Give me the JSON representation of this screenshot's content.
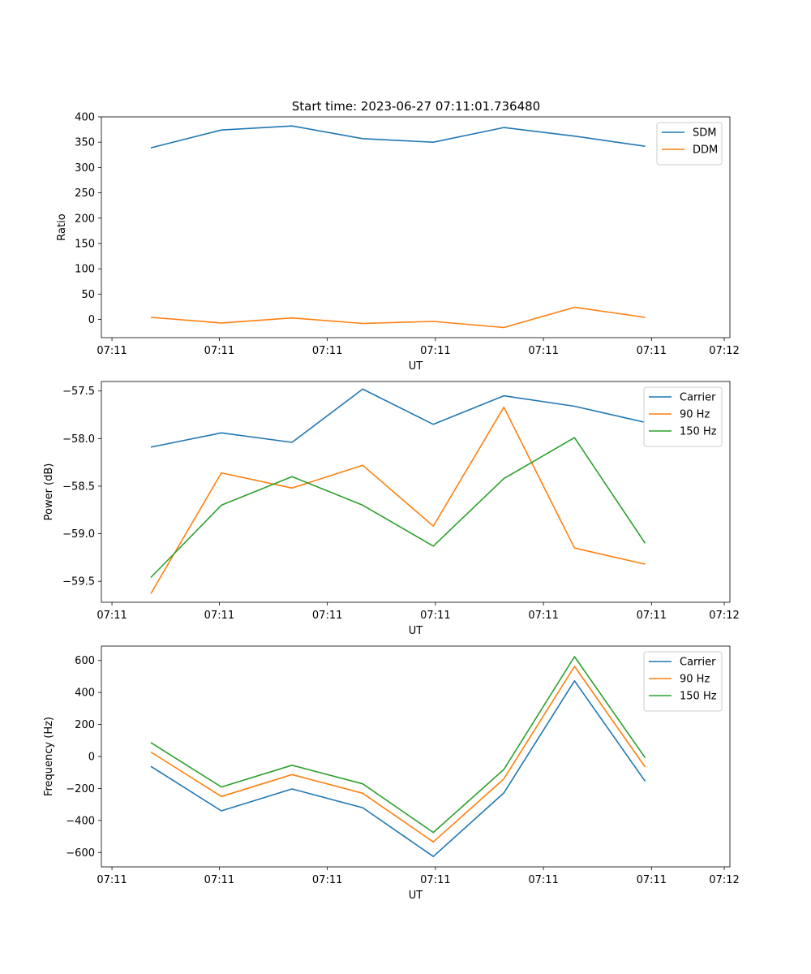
{
  "figure": {
    "suptitle": "Start time: 2023-06-27 07:11:01.736480"
  },
  "chart_data": [
    {
      "type": "line",
      "title": "Start time: 2023-06-27 07:11:01.736480",
      "xlabel": "UT",
      "ylabel": "Ratio",
      "x": [
        1,
        2,
        3,
        4,
        5,
        6,
        7,
        8
      ],
      "xlim": [
        0.3,
        9.2
      ],
      "x_ticks": [
        0.45,
        1.97,
        3.5,
        5.03,
        6.56,
        8.09,
        9.12
      ],
      "x_tick_labels": [
        "07:11",
        "07:11",
        "07:11",
        "07:11",
        "07:11",
        "07:11",
        "07:12"
      ],
      "ylim": [
        -36,
        400
      ],
      "y_ticks": [
        0,
        50,
        100,
        150,
        200,
        250,
        300,
        350,
        400
      ],
      "y_tick_labels": [
        "0",
        "50",
        "100",
        "150",
        "200",
        "250",
        "300",
        "350",
        "400"
      ],
      "grid": false,
      "legend": "top-right",
      "series": [
        {
          "name": "SDM",
          "color": "#1f77b4",
          "values": [
            339,
            374,
            382,
            357,
            350,
            379,
            362,
            342
          ]
        },
        {
          "name": "DDM",
          "color": "#ff7f0e",
          "values": [
            4,
            -7,
            3,
            -8,
            -4,
            -16,
            24,
            4
          ]
        }
      ]
    },
    {
      "type": "line",
      "xlabel": "UT",
      "ylabel": "Power (dB)",
      "x": [
        1,
        2,
        3,
        4,
        5,
        6,
        7,
        8
      ],
      "xlim": [
        0.3,
        9.2
      ],
      "x_ticks": [
        0.45,
        1.97,
        3.5,
        5.03,
        6.56,
        8.09,
        9.12
      ],
      "x_tick_labels": [
        "07:11",
        "07:11",
        "07:11",
        "07:11",
        "07:11",
        "07:11",
        "07:12"
      ],
      "ylim": [
        -59.72,
        -57.4
      ],
      "y_ticks": [
        -59.5,
        -59.0,
        -58.5,
        -58.0,
        -57.5
      ],
      "y_tick_labels": [
        "−59.5",
        "−59.0",
        "−58.5",
        "−58.0",
        "−57.5"
      ],
      "grid": false,
      "legend": "top-right",
      "series": [
        {
          "name": "Carrier",
          "color": "#1f77b4",
          "values": [
            -58.09,
            -57.94,
            -58.04,
            -57.48,
            -57.85,
            -57.55,
            -57.66,
            -57.83
          ]
        },
        {
          "name": "90 Hz",
          "color": "#ff7f0e",
          "values": [
            -59.63,
            -58.36,
            -58.52,
            -58.28,
            -58.92,
            -57.67,
            -59.15,
            -59.32
          ]
        },
        {
          "name": "150 Hz",
          "color": "#2ca02c",
          "values": [
            -59.46,
            -58.7,
            -58.4,
            -58.7,
            -59.13,
            -58.42,
            -57.99,
            -59.1
          ]
        }
      ]
    },
    {
      "type": "line",
      "xlabel": "UT",
      "ylabel": "Frequency (Hz)",
      "x": [
        1,
        2,
        3,
        4,
        5,
        6,
        7,
        8
      ],
      "xlim": [
        0.3,
        9.2
      ],
      "x_ticks": [
        0.45,
        1.97,
        3.5,
        5.03,
        6.56,
        8.09,
        9.12
      ],
      "x_tick_labels": [
        "07:11",
        "07:11",
        "07:11",
        "07:11",
        "07:11",
        "07:11",
        "07:12"
      ],
      "ylim": [
        -690,
        690
      ],
      "y_ticks": [
        -600,
        -400,
        -200,
        0,
        200,
        400,
        600
      ],
      "y_tick_labels": [
        "−600",
        "−400",
        "−200",
        "0",
        "200",
        "400",
        "600"
      ],
      "grid": false,
      "legend": "top-right",
      "series": [
        {
          "name": "Carrier",
          "color": "#1f77b4",
          "values": [
            -62,
            -340,
            -203,
            -320,
            -625,
            -228,
            473,
            -155
          ]
        },
        {
          "name": "90 Hz",
          "color": "#ff7f0e",
          "values": [
            28,
            -250,
            -113,
            -230,
            -534,
            -140,
            563,
            -66
          ]
        },
        {
          "name": "150 Hz",
          "color": "#2ca02c",
          "values": [
            87,
            -191,
            -55,
            -171,
            -475,
            -81,
            624,
            -8
          ]
        }
      ]
    }
  ]
}
